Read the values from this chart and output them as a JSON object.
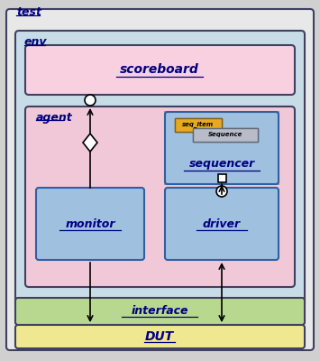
{
  "bg_outer": "#d0d0d0",
  "bg_test": "#e8e8e8",
  "bg_env": "#c8dce8",
  "bg_scoreboard": "#f8d0e0",
  "bg_agent": "#f0c8d8",
  "bg_sequencer_outer": "#c8ccd8",
  "bg_sequencer": "#a0c0e0",
  "bg_monitor": "#a0c0e0",
  "bg_driver": "#a0c0e0",
  "bg_interface": "#b8d890",
  "bg_dut": "#f0e890",
  "border_dark": "#404060",
  "border_blue": "#3060a0",
  "text_color": "#000080",
  "labels": {
    "test": "test",
    "env": "env",
    "scoreboard": "scoreboard",
    "agent": "agent",
    "sequencer": "sequencer",
    "seq_item": "seq_item",
    "sequence": "Sequence",
    "monitor": "monitor",
    "driver": "driver",
    "interface": "interface",
    "dut": "DUT"
  }
}
